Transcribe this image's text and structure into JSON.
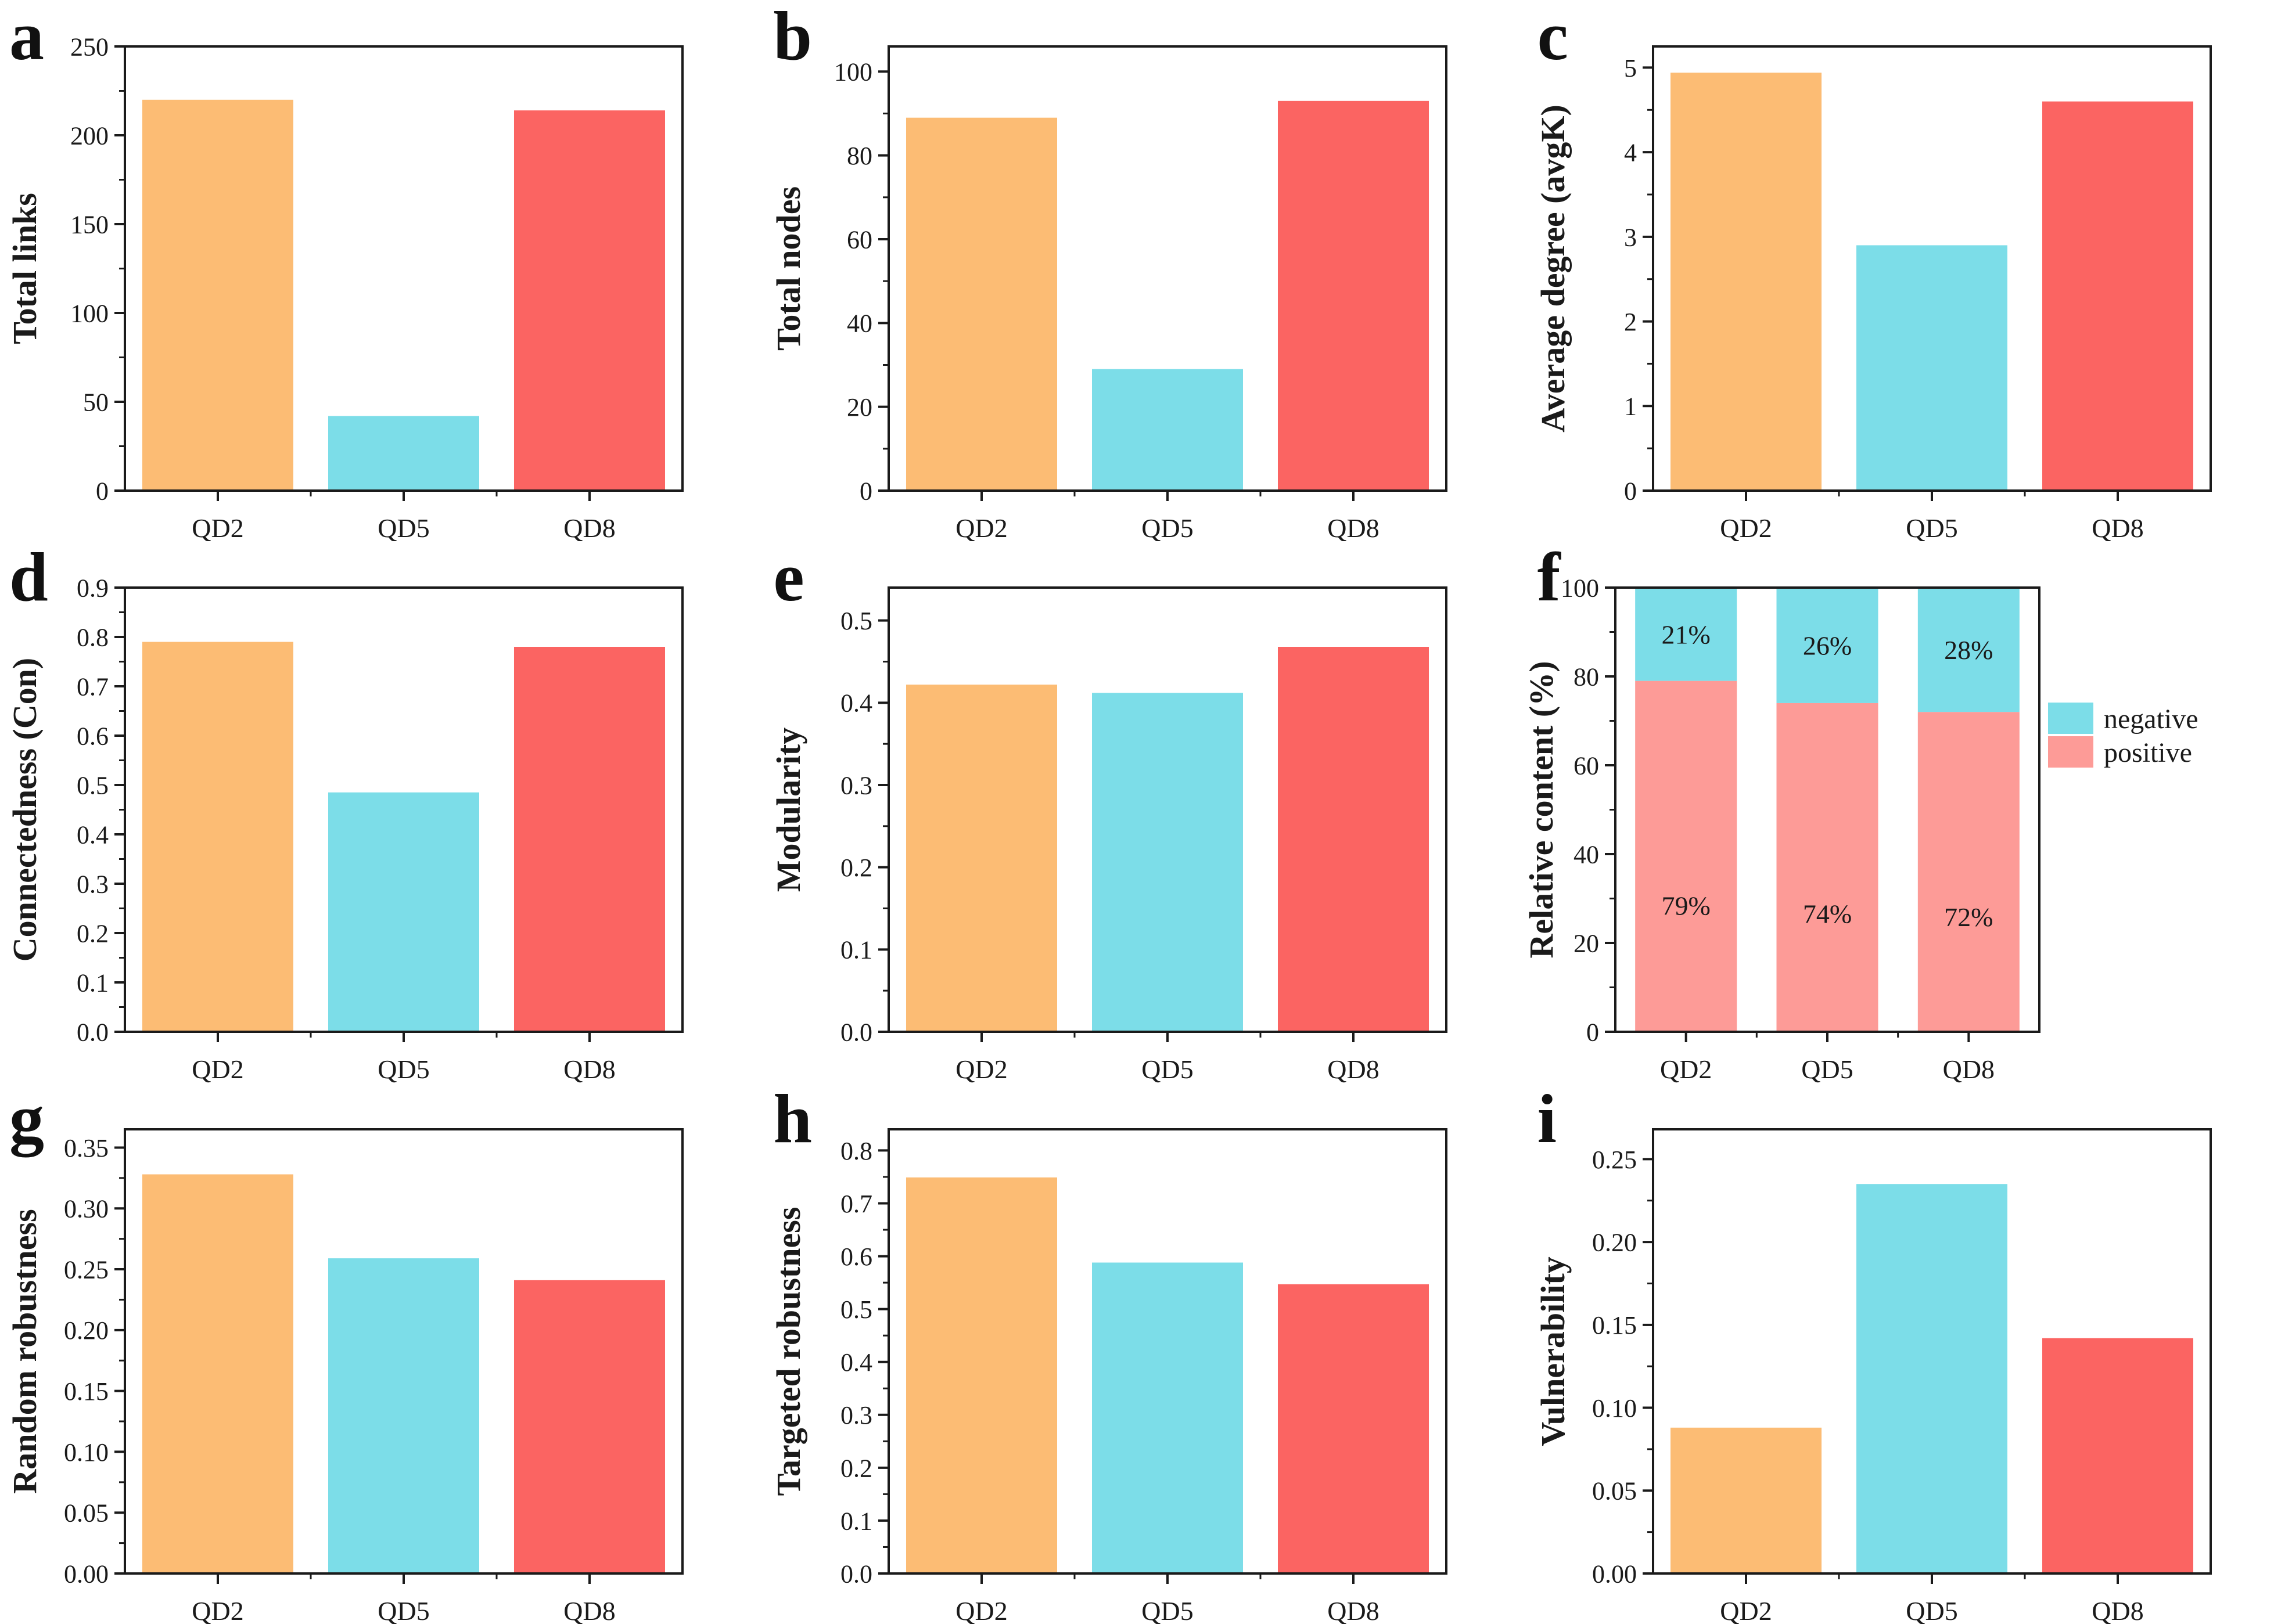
{
  "figure": {
    "background": "#ffffff",
    "text_color": "#1a1a1a",
    "axis_color": "#1a1a1a"
  },
  "colors": {
    "orange": "#FCBC74",
    "cyan": "#7CDDE8",
    "red": "#FB6462",
    "pink": "#FD9B97",
    "axis": "#1a1a1a"
  },
  "categories": [
    "QD2",
    "QD5",
    "QD8"
  ],
  "bar_color_keys": [
    "orange",
    "cyan",
    "red"
  ],
  "legend": {
    "position": "right-of-panel-f",
    "entries": [
      {
        "label": "negative",
        "color": "cyan"
      },
      {
        "label": "positive",
        "color": "pink"
      }
    ]
  },
  "chart_data": [
    {
      "letter": "a",
      "type": "bar",
      "title": "",
      "ylabel": "Total links",
      "xlabel": "",
      "categories": [
        "QD2",
        "QD5",
        "QD8"
      ],
      "values": [
        220,
        42,
        214
      ],
      "ylim": [
        0,
        250
      ],
      "ytick_step": 50,
      "ytick_max": 250,
      "decimals": 0,
      "grid": false
    },
    {
      "letter": "b",
      "type": "bar",
      "title": "",
      "ylabel": "Total nodes",
      "xlabel": "",
      "categories": [
        "QD2",
        "QD5",
        "QD8"
      ],
      "values": [
        89,
        29,
        93
      ],
      "ylim": [
        0,
        106
      ],
      "ytick_step": 20,
      "ytick_max": 100,
      "decimals": 0,
      "grid": false
    },
    {
      "letter": "c",
      "type": "bar",
      "title": "",
      "ylabel": "Average degree (avgK)",
      "xlabel": "",
      "categories": [
        "QD2",
        "QD5",
        "QD8"
      ],
      "values": [
        4.94,
        2.9,
        4.6
      ],
      "ylim": [
        0,
        5.25
      ],
      "ytick_step": 1,
      "ytick_max": 5,
      "decimals": 0,
      "grid": false
    },
    {
      "letter": "d",
      "type": "bar",
      "title": "",
      "ylabel": "Connectedness (Con)",
      "xlabel": "",
      "categories": [
        "QD2",
        "QD5",
        "QD8"
      ],
      "values": [
        0.79,
        0.485,
        0.78
      ],
      "ylim": [
        0,
        0.9
      ],
      "ytick_step": 0.1,
      "ytick_max": 0.9,
      "decimals": 1,
      "grid": false
    },
    {
      "letter": "e",
      "type": "bar",
      "title": "",
      "ylabel": "Modularity",
      "xlabel": "",
      "categories": [
        "QD2",
        "QD5",
        "QD8"
      ],
      "values": [
        0.422,
        0.412,
        0.468
      ],
      "ylim": [
        0,
        0.54
      ],
      "ytick_step": 0.1,
      "ytick_max": 0.5,
      "decimals": 1,
      "grid": false
    },
    {
      "letter": "f",
      "type": "stacked-bar",
      "title": "",
      "ylabel": "Relative content (%)",
      "xlabel": "",
      "categories": [
        "QD2",
        "QD5",
        "QD8"
      ],
      "series": [
        {
          "name": "positive",
          "color": "pink",
          "values": [
            79,
            74,
            72
          ],
          "labels": [
            "79%",
            "74%",
            "72%"
          ]
        },
        {
          "name": "negative",
          "color": "cyan",
          "values": [
            21,
            26,
            28
          ],
          "labels": [
            "21%",
            "26%",
            "28%"
          ]
        }
      ],
      "ylim": [
        0,
        100
      ],
      "ytick_step": 20,
      "ytick_max": 100,
      "decimals": 0,
      "grid": false,
      "legend_entries": [
        "negative",
        "positive"
      ]
    },
    {
      "letter": "g",
      "type": "bar",
      "title": "",
      "ylabel": "Random robustness",
      "xlabel": "",
      "categories": [
        "QD2",
        "QD5",
        "QD8"
      ],
      "values": [
        0.328,
        0.259,
        0.241
      ],
      "ylim": [
        0,
        0.365
      ],
      "ytick_step": 0.05,
      "ytick_max": 0.35,
      "decimals": 2,
      "grid": false
    },
    {
      "letter": "h",
      "type": "bar",
      "title": "",
      "ylabel": "Targeted robustness",
      "xlabel": "",
      "categories": [
        "QD2",
        "QD5",
        "QD8"
      ],
      "values": [
        0.749,
        0.588,
        0.547
      ],
      "ylim": [
        0,
        0.84
      ],
      "ytick_step": 0.1,
      "ytick_max": 0.8,
      "decimals": 1,
      "grid": false
    },
    {
      "letter": "i",
      "type": "bar",
      "title": "",
      "ylabel": "Vulnerability",
      "xlabel": "",
      "categories": [
        "QD2",
        "QD5",
        "QD8"
      ],
      "values": [
        0.088,
        0.235,
        0.142
      ],
      "ylim": [
        0,
        0.268
      ],
      "ytick_step": 0.05,
      "ytick_max": 0.25,
      "decimals": 2,
      "grid": false
    }
  ]
}
